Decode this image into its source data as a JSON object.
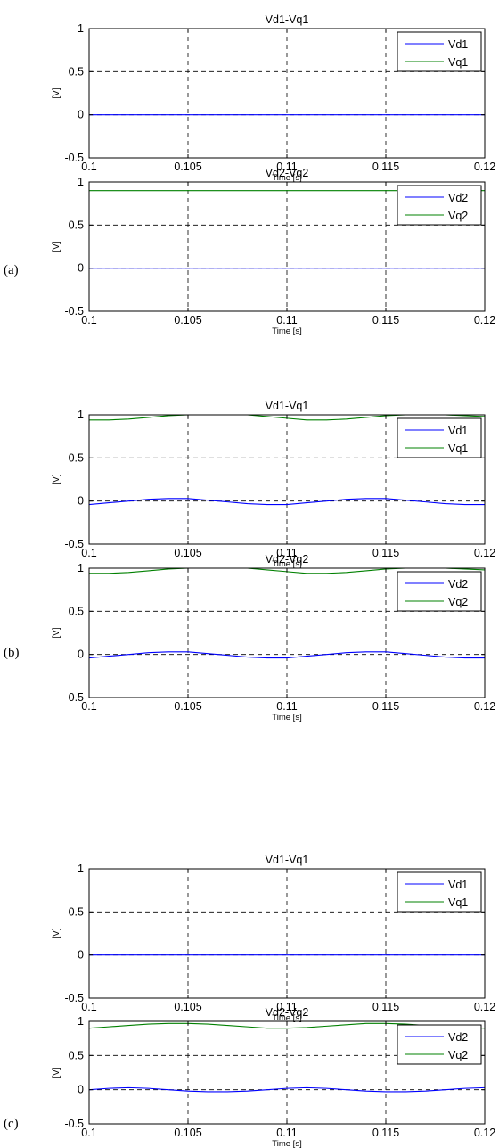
{
  "panel_labels": [
    "(a)",
    "(b)",
    "(c)"
  ],
  "colors": {
    "d_series": "#0000ff",
    "q_series": "#008000",
    "grid": "#000000"
  },
  "chart_data": [
    {
      "type": "line",
      "panel": "(a)",
      "title": "Vd1-Vq1",
      "xlabel": "Time [s]",
      "ylabel": "[V]",
      "xlim": [
        0.1,
        0.12
      ],
      "ylim": [
        -0.5,
        1
      ],
      "xticks": [
        "0.1",
        "0.105",
        "0.11",
        "0.115",
        "0.12"
      ],
      "yticks": [
        "-0.5",
        "0",
        "0.5",
        "1"
      ],
      "grid": true,
      "legend": "top-right",
      "x": [
        0.1,
        0.12
      ],
      "series": [
        {
          "name": "Vd1",
          "values": [
            0,
            0
          ]
        },
        {
          "name": "Vq1",
          "values": [
            1,
            1
          ]
        }
      ]
    },
    {
      "type": "line",
      "panel": "(a)",
      "title": "Vd2-Vq2",
      "xlabel": "Time [s]",
      "ylabel": "[V]",
      "xlim": [
        0.1,
        0.12
      ],
      "ylim": [
        -0.5,
        1
      ],
      "xticks": [
        "0.1",
        "0.105",
        "0.11",
        "0.115",
        "0.12"
      ],
      "yticks": [
        "-0.5",
        "0",
        "0.5",
        "1"
      ],
      "grid": true,
      "legend": "top-right",
      "x": [
        0.1,
        0.12
      ],
      "series": [
        {
          "name": "Vd2",
          "values": [
            0,
            0
          ]
        },
        {
          "name": "Vq2",
          "values": [
            0.9,
            0.9
          ]
        }
      ]
    },
    {
      "type": "line",
      "panel": "(b)",
      "title": "Vd1-Vq1",
      "xlabel": "Time [s]",
      "ylabel": "[V]",
      "xlim": [
        0.1,
        0.12
      ],
      "ylim": [
        -0.5,
        1
      ],
      "xticks": [
        "0.1",
        "0.105",
        "0.11",
        "0.115",
        "0.12"
      ],
      "yticks": [
        "-0.5",
        "0",
        "0.5",
        "1"
      ],
      "grid": true,
      "legend": "top-right",
      "x": [
        0.1,
        0.101,
        0.102,
        0.103,
        0.104,
        0.105,
        0.106,
        0.107,
        0.108,
        0.109,
        0.11,
        0.111,
        0.112,
        0.113,
        0.114,
        0.115,
        0.116,
        0.117,
        0.118,
        0.119,
        0.12
      ],
      "series": [
        {
          "name": "Vd1",
          "values": [
            -0.04,
            -0.02,
            0.0,
            0.02,
            0.03,
            0.03,
            0.01,
            -0.01,
            -0.03,
            -0.04,
            -0.04,
            -0.02,
            0.0,
            0.02,
            0.03,
            0.03,
            0.01,
            -0.01,
            -0.03,
            -0.04,
            -0.04
          ]
        },
        {
          "name": "Vq1",
          "values": [
            0.94,
            0.94,
            0.95,
            0.97,
            0.99,
            1.0,
            1.0,
            1.0,
            1.0,
            0.98,
            0.96,
            0.94,
            0.94,
            0.95,
            0.97,
            0.99,
            1.0,
            1.0,
            1.0,
            0.99,
            0.98
          ]
        }
      ]
    },
    {
      "type": "line",
      "panel": "(b)",
      "title": "Vd2-Vq2",
      "xlabel": "Time [s]",
      "ylabel": "[V]",
      "xlim": [
        0.1,
        0.12
      ],
      "ylim": [
        -0.5,
        1
      ],
      "xticks": [
        "0.1",
        "0.105",
        "0.11",
        "0.115",
        "0.12"
      ],
      "yticks": [
        "-0.5",
        "0",
        "0.5",
        "1"
      ],
      "grid": true,
      "legend": "top-right",
      "x": [
        0.1,
        0.101,
        0.102,
        0.103,
        0.104,
        0.105,
        0.106,
        0.107,
        0.108,
        0.109,
        0.11,
        0.111,
        0.112,
        0.113,
        0.114,
        0.115,
        0.116,
        0.117,
        0.118,
        0.119,
        0.12
      ],
      "series": [
        {
          "name": "Vd2",
          "values": [
            -0.04,
            -0.02,
            0.0,
            0.02,
            0.03,
            0.03,
            0.01,
            -0.01,
            -0.03,
            -0.04,
            -0.04,
            -0.02,
            0.0,
            0.02,
            0.03,
            0.03,
            0.01,
            -0.01,
            -0.03,
            -0.04,
            -0.04
          ]
        },
        {
          "name": "Vq2",
          "values": [
            0.94,
            0.94,
            0.95,
            0.97,
            0.99,
            1.0,
            1.0,
            1.0,
            1.0,
            0.98,
            0.96,
            0.94,
            0.94,
            0.95,
            0.97,
            0.99,
            1.0,
            1.0,
            1.0,
            0.99,
            0.98
          ]
        }
      ]
    },
    {
      "type": "line",
      "panel": "(c)",
      "title": "Vd1-Vq1",
      "xlabel": "Time [s]",
      "ylabel": "[V]",
      "xlim": [
        0.1,
        0.12
      ],
      "ylim": [
        -0.5,
        1
      ],
      "xticks": [
        "0.1",
        "0.105",
        "0.11",
        "0.115",
        "0.12"
      ],
      "yticks": [
        "-0.5",
        "0",
        "0.5",
        "1"
      ],
      "grid": true,
      "legend": "top-right",
      "x": [
        0.1,
        0.12
      ],
      "series": [
        {
          "name": "Vd1",
          "values": [
            0,
            0
          ]
        },
        {
          "name": "Vq1",
          "values": [
            1,
            1
          ]
        }
      ]
    },
    {
      "type": "line",
      "panel": "(c)",
      "title": "Vd2-Vq2",
      "xlabel": "Time [s]",
      "ylabel": "[V]",
      "xlim": [
        0.1,
        0.12
      ],
      "ylim": [
        -0.5,
        1
      ],
      "xticks": [
        "0.1",
        "0.105",
        "0.11",
        "0.115",
        "0.12"
      ],
      "yticks": [
        "-0.5",
        "0",
        "0.5",
        "1"
      ],
      "grid": true,
      "legend": "top-right",
      "x": [
        0.1,
        0.101,
        0.102,
        0.103,
        0.104,
        0.105,
        0.106,
        0.107,
        0.108,
        0.109,
        0.11,
        0.111,
        0.112,
        0.113,
        0.114,
        0.115,
        0.116,
        0.117,
        0.118,
        0.119,
        0.12
      ],
      "series": [
        {
          "name": "Vd2",
          "values": [
            0.0,
            0.02,
            0.03,
            0.02,
            0.0,
            -0.02,
            -0.03,
            -0.03,
            -0.02,
            0.0,
            0.02,
            0.03,
            0.02,
            0.0,
            -0.02,
            -0.03,
            -0.03,
            -0.02,
            0.0,
            0.02,
            0.03
          ]
        },
        {
          "name": "Vq2",
          "values": [
            0.9,
            0.92,
            0.94,
            0.96,
            0.97,
            0.97,
            0.96,
            0.94,
            0.92,
            0.9,
            0.9,
            0.91,
            0.93,
            0.95,
            0.97,
            0.97,
            0.96,
            0.94,
            0.92,
            0.91,
            0.9
          ]
        }
      ]
    }
  ]
}
